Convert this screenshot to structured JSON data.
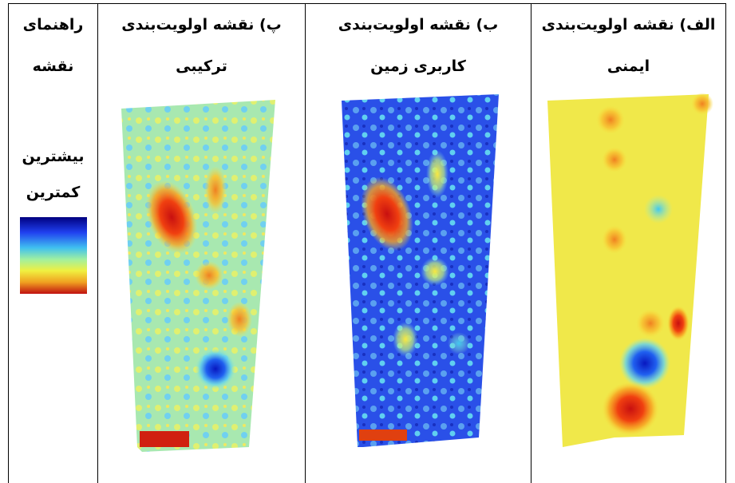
{
  "table": {
    "columns": [
      {
        "title": [
          "الف) نقشه اولویت‌بندی",
          "ایمنی"
        ]
      },
      {
        "title": [
          "ب) نقشه اولویت‌بندی",
          "کاربری زمین"
        ]
      },
      {
        "title": [
          "پ) نقشه اولویت‌بندی",
          "ترکیبی"
        ]
      }
    ],
    "legend": {
      "title": [
        "راهنمای",
        "نقشه"
      ],
      "max": "بیشترین",
      "min": "کمترین"
    }
  }
}
